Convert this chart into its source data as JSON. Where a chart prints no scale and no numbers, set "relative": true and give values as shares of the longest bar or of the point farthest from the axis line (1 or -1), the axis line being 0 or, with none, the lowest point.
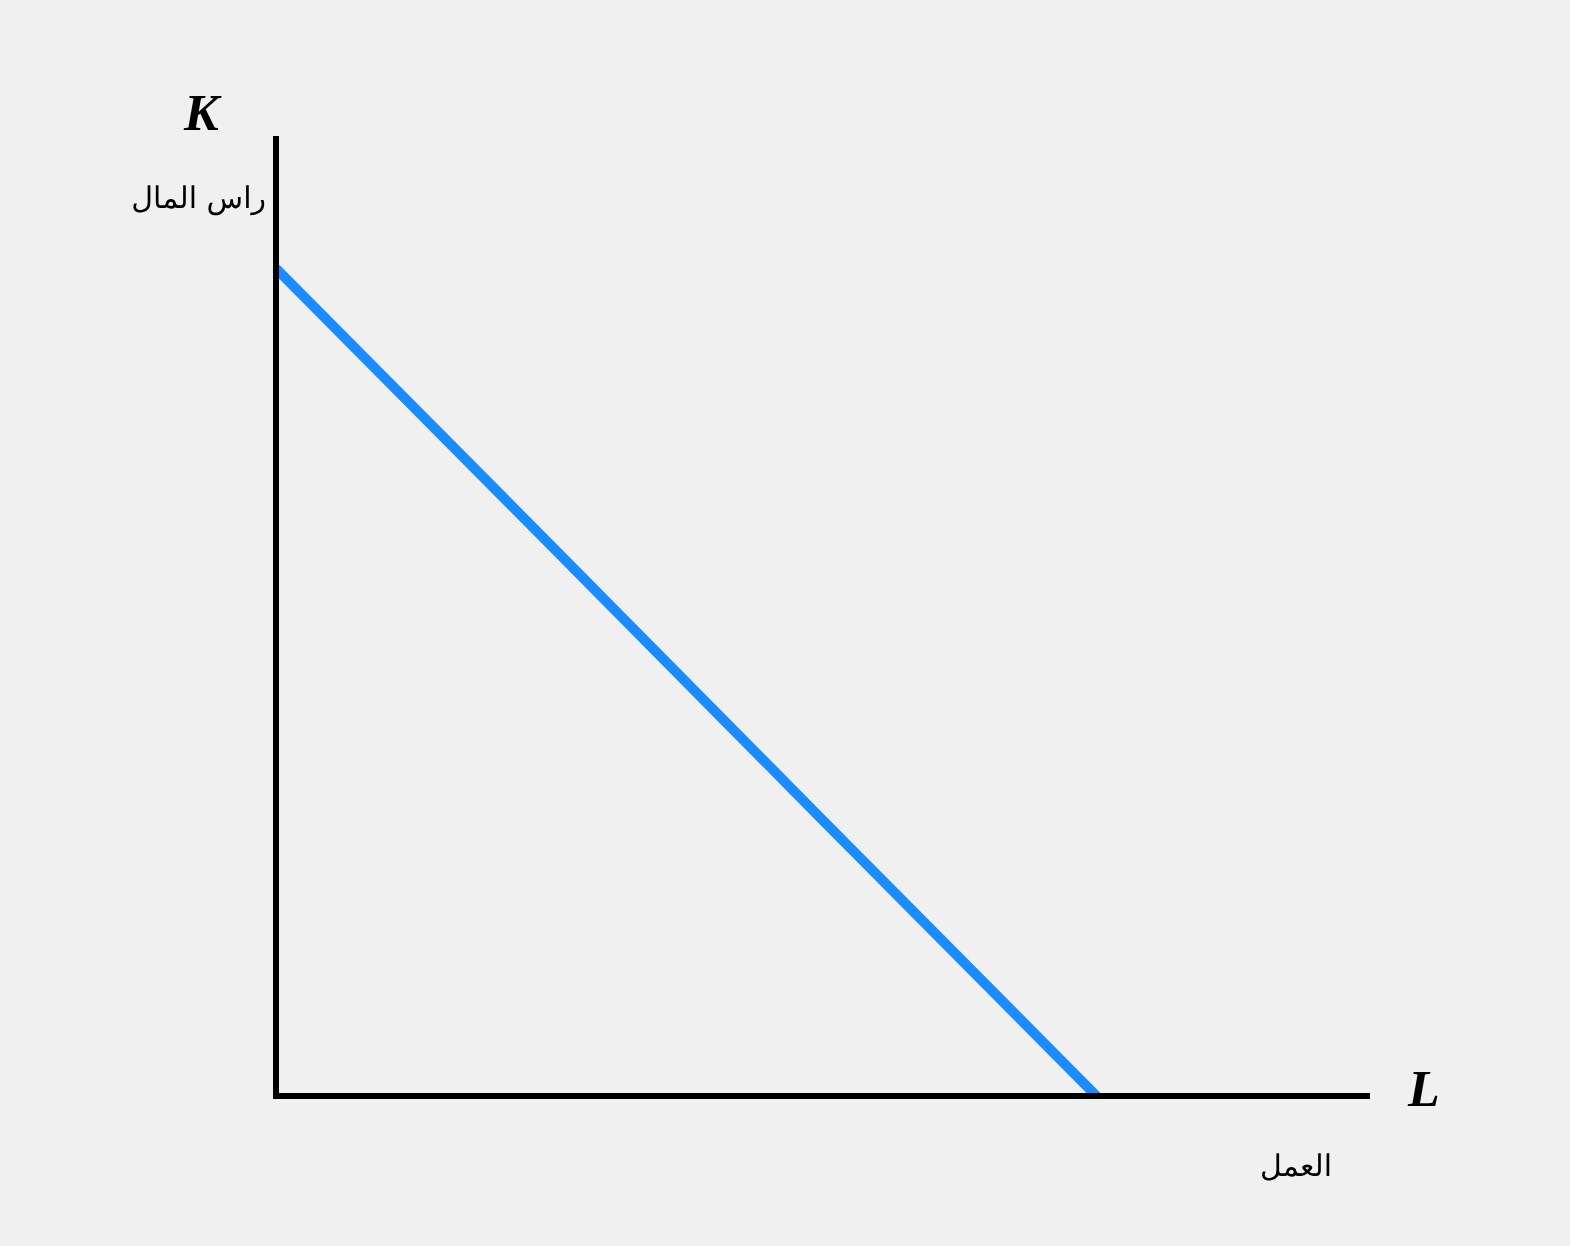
{
  "chart_data": {
    "type": "line",
    "relative": true,
    "xlabel": "العمل",
    "ylabel": "راس المال",
    "annotations": [
      "K",
      "L"
    ],
    "categories": [
      null,
      null,
      null,
      null,
      null
    ],
    "series": [
      {
        "color": "#1a8cff",
        "values": [
          1,
          0.667,
          0.333,
          0,
          null
        ]
      }
    ]
  }
}
